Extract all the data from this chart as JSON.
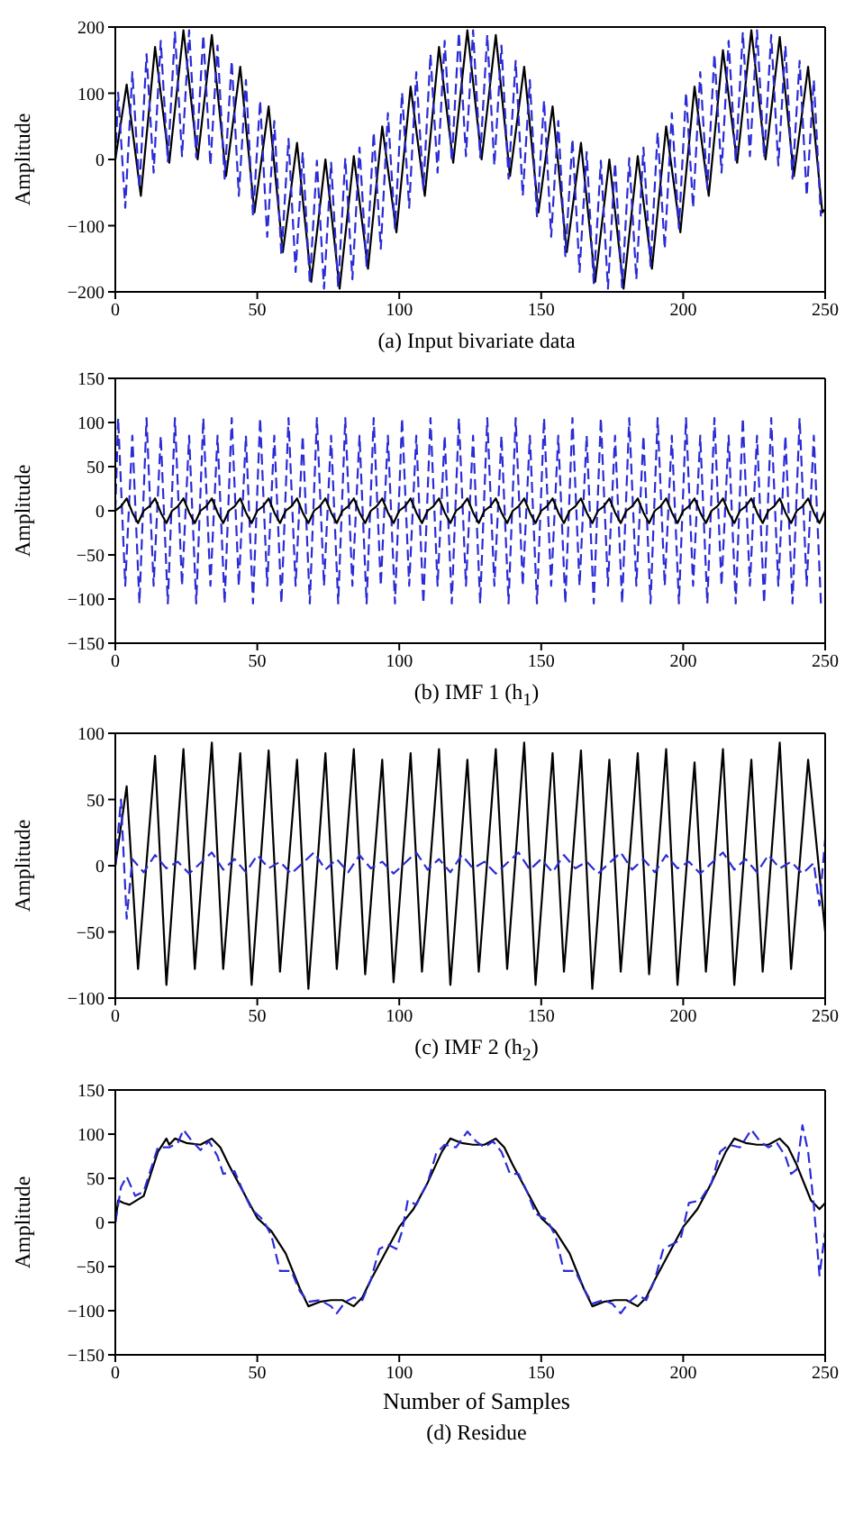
{
  "chart_data": [
    {
      "type": "line",
      "title": "(a) Input bivariate data",
      "ylabel": "Amplitude",
      "xlim": [
        0,
        250
      ],
      "xticks": [
        0,
        50,
        100,
        150,
        200,
        250
      ],
      "ylim": [
        -200,
        200
      ],
      "yticks": [
        -200,
        -100,
        0,
        100,
        200
      ],
      "series": [
        {
          "color": "#000000",
          "line_style": "solid",
          "x": [
            0,
            4,
            9,
            14,
            19,
            24,
            29,
            34,
            39,
            44,
            49,
            54,
            59,
            64,
            69,
            74,
            79,
            84,
            89,
            94,
            99,
            104,
            109,
            114,
            119,
            124,
            129,
            134,
            139,
            144,
            149,
            154,
            159,
            164,
            169,
            174,
            179,
            184,
            189,
            194,
            199,
            204,
            209,
            214,
            219,
            224,
            229,
            234,
            239,
            244,
            249,
            250
          ],
          "values": [
            0,
            113,
            -55,
            170,
            -5,
            195,
            0,
            188,
            -25,
            140,
            -80,
            80,
            -140,
            25,
            -185,
            0,
            -195,
            5,
            -165,
            50,
            -110,
            110,
            -55,
            170,
            -5,
            195,
            0,
            188,
            -25,
            140,
            -80,
            80,
            -140,
            25,
            -185,
            0,
            -195,
            5,
            -165,
            50,
            -110,
            110,
            -55,
            165,
            -5,
            195,
            0,
            185,
            -25,
            140,
            -80,
            -75
          ]
        },
        {
          "color": "#2b2bd6",
          "line_style": "dashed",
          "x": [
            0,
            1,
            3.5,
            6,
            8.5,
            11,
            13.5,
            16,
            18.5,
            21,
            23.5,
            26,
            28.5,
            31,
            33.5,
            36,
            38.5,
            41,
            43.5,
            46,
            48.5,
            51,
            53.5,
            56,
            58.5,
            61,
            63.5,
            66,
            68.5,
            71,
            73.5,
            76,
            78.5,
            81,
            83.5,
            86,
            88.5,
            91,
            93.5,
            96,
            98.5,
            101,
            103.5,
            106,
            108.5,
            111,
            113.5,
            116,
            118.5,
            121,
            123.5,
            126,
            128.5,
            131,
            133.5,
            136,
            138.5,
            141,
            143.5,
            146,
            148.5,
            151,
            153.5,
            156,
            158.5,
            161,
            163.5,
            166,
            168.5,
            171,
            173.5,
            176,
            178.5,
            181,
            183.5,
            186,
            188.5,
            191,
            193.5,
            196,
            198.5,
            201,
            203.5,
            206,
            208.5,
            211,
            213.5,
            216,
            218.5,
            221,
            223.5,
            226,
            228.5,
            231,
            233.5,
            236,
            238.5,
            241,
            243.5,
            246,
            248.5
          ],
          "values": [
            0,
            101,
            -73,
            132,
            -44,
            159,
            -20,
            179,
            -3,
            192,
            5,
            195,
            3,
            188,
            -9,
            172,
            -29,
            149,
            -55,
            120,
            -86,
            89,
            -117,
            58,
            -146,
            31,
            -170,
            11,
            -187,
            -2,
            -195,
            -5,
            -193,
            2,
            -181,
            18,
            -161,
            41,
            -135,
            70,
            -104,
            101,
            -73,
            132,
            -44,
            159,
            -20,
            179,
            -3,
            192,
            5,
            195,
            3,
            188,
            -9,
            172,
            -29,
            149,
            -55,
            120,
            -86,
            89,
            -117,
            58,
            -146,
            31,
            -170,
            11,
            -187,
            -2,
            -195,
            -5,
            -193,
            2,
            -181,
            18,
            -161,
            41,
            -135,
            70,
            -104,
            101,
            -73,
            132,
            -44,
            159,
            -20,
            179,
            -3,
            192,
            5,
            195,
            3,
            188,
            -9,
            172,
            -29,
            149,
            -55,
            120,
            -86
          ]
        }
      ]
    },
    {
      "type": "line",
      "title": "(b) IMF 1 (h$_{1}$)",
      "ylabel": "Amplitude",
      "xlim": [
        0,
        250
      ],
      "xticks": [
        0,
        50,
        100,
        150,
        200,
        250
      ],
      "ylim": [
        -150,
        150
      ],
      "yticks": [
        -150,
        -100,
        -50,
        0,
        50,
        100,
        150
      ],
      "series": [
        {
          "color": "#2b2bd6",
          "line_style": "dashed",
          "x": [
            0,
            1,
            3.5,
            6,
            8.5,
            11,
            13.5,
            16,
            18.5,
            21,
            23.5,
            26,
            28.5,
            31,
            33.5,
            36,
            38.5,
            41,
            43.5,
            46,
            48.5,
            51,
            53.5,
            56,
            58.5,
            61,
            63.5,
            66,
            68.5,
            71,
            73.5,
            76,
            78.5,
            81,
            83.5,
            86,
            88.5,
            91,
            93.5,
            96,
            98.5,
            101,
            103.5,
            106,
            108.5,
            111,
            113.5,
            116,
            118.5,
            121,
            123.5,
            126,
            128.5,
            131,
            133.5,
            136,
            138.5,
            141,
            143.5,
            146,
            148.5,
            151,
            153.5,
            156,
            158.5,
            161,
            163.5,
            166,
            168.5,
            171,
            173.5,
            176,
            178.5,
            181,
            183.5,
            186,
            188.5,
            191,
            193.5,
            196,
            198.5,
            201,
            203.5,
            206,
            208.5,
            211,
            213.5,
            216,
            218.5,
            221,
            223.5,
            226,
            228.5,
            231,
            233.5,
            236,
            238.5,
            241,
            243.5,
            246,
            248.5
          ],
          "values": [
            0,
            105,
            -85,
            85,
            -105,
            105,
            -85,
            85,
            -105,
            105,
            -85,
            85,
            -105,
            105,
            -85,
            85,
            -105,
            105,
            -85,
            85,
            -105,
            105,
            -85,
            85,
            -105,
            105,
            -85,
            85,
            -105,
            105,
            -85,
            85,
            -105,
            105,
            -85,
            85,
            -105,
            105,
            -85,
            85,
            -105,
            105,
            -85,
            85,
            -105,
            105,
            -85,
            85,
            -105,
            105,
            -85,
            85,
            -105,
            105,
            -85,
            85,
            -105,
            105,
            -85,
            85,
            -105,
            105,
            -85,
            85,
            -105,
            105,
            -85,
            85,
            -105,
            105,
            -85,
            85,
            -105,
            105,
            -85,
            85,
            -105,
            105,
            -85,
            85,
            -105,
            105,
            -85,
            85,
            -105,
            105,
            -85,
            85,
            -105,
            105,
            -85,
            85,
            -105,
            105,
            -85,
            85,
            -105,
            105,
            -85,
            85,
            -105
          ]
        },
        {
          "color": "#000000",
          "line_style": "solid",
          "x": [
            0,
            2,
            4,
            6,
            8,
            10,
            12,
            14,
            16,
            18,
            20,
            22,
            24,
            26,
            28,
            30,
            32,
            34,
            36,
            38,
            40,
            42,
            44,
            46,
            48,
            50,
            52,
            54,
            56,
            58,
            60,
            62,
            64,
            66,
            68,
            70,
            72,
            74,
            76,
            78,
            80,
            82,
            84,
            86,
            88,
            90,
            92,
            94,
            96,
            98,
            100,
            102,
            104,
            106,
            108,
            110,
            112,
            114,
            116,
            118,
            120,
            122,
            124,
            126,
            128,
            130,
            132,
            134,
            136,
            138,
            140,
            142,
            144,
            146,
            148,
            150,
            152,
            154,
            156,
            158,
            160,
            162,
            164,
            166,
            168,
            170,
            172,
            174,
            176,
            178,
            180,
            182,
            184,
            186,
            188,
            190,
            192,
            194,
            196,
            198,
            200,
            202,
            204,
            206,
            208,
            210,
            212,
            214,
            216,
            218,
            220,
            222,
            224,
            226,
            228,
            230,
            232,
            234,
            236,
            238,
            240,
            242,
            244,
            246,
            248,
            250
          ],
          "values": [
            0,
            5,
            14,
            -2,
            -14,
            0,
            5,
            14,
            -2,
            -14,
            0,
            5,
            14,
            -2,
            -14,
            0,
            5,
            14,
            -2,
            -14,
            0,
            5,
            14,
            -2,
            -14,
            0,
            5,
            14,
            -2,
            -14,
            0,
            5,
            14,
            -2,
            -14,
            0,
            5,
            14,
            -2,
            -14,
            0,
            5,
            14,
            -2,
            -14,
            0,
            5,
            14,
            -2,
            -14,
            0,
            5,
            14,
            -2,
            -14,
            0,
            5,
            14,
            -2,
            -14,
            0,
            5,
            14,
            -2,
            -14,
            0,
            5,
            14,
            -2,
            -14,
            0,
            5,
            14,
            -2,
            -14,
            0,
            5,
            14,
            -2,
            -14,
            0,
            5,
            14,
            -2,
            -14,
            0,
            5,
            14,
            -2,
            -14,
            0,
            5,
            14,
            -2,
            -14,
            0,
            5,
            14,
            -2,
            -14,
            0,
            5,
            14,
            -2,
            -14,
            0,
            5,
            14,
            -2,
            -14,
            0,
            5,
            14,
            -2,
            -14,
            0,
            5,
            14,
            -2,
            -14,
            0,
            5,
            14,
            -2,
            -14,
            0
          ]
        }
      ]
    },
    {
      "type": "line",
      "title": "(c) IMF 2 (h$_{2}$)",
      "ylabel": "Amplitude",
      "xlim": [
        0,
        250
      ],
      "xticks": [
        0,
        50,
        100,
        150,
        200,
        250
      ],
      "ylim": [
        -100,
        100
      ],
      "yticks": [
        -100,
        -50,
        0,
        50,
        100
      ],
      "series": [
        {
          "color": "#000000",
          "line_style": "solid",
          "x": [
            0,
            4,
            8,
            14,
            18,
            24,
            28,
            34,
            38,
            44,
            48,
            54,
            58,
            64,
            68,
            74,
            78,
            84,
            88,
            94,
            98,
            104,
            108,
            114,
            118,
            124,
            128,
            134,
            138,
            144,
            148,
            154,
            158,
            164,
            168,
            174,
            178,
            184,
            188,
            194,
            198,
            204,
            208,
            214,
            218,
            224,
            228,
            234,
            238,
            244,
            250
          ],
          "values": [
            0,
            60,
            -78,
            83,
            -90,
            88,
            -78,
            93,
            -78,
            85,
            -90,
            87,
            -80,
            80,
            -93,
            85,
            -78,
            88,
            -82,
            80,
            -88,
            85,
            -80,
            88,
            -90,
            80,
            -80,
            88,
            -78,
            93,
            -90,
            85,
            -80,
            87,
            -93,
            80,
            -80,
            85,
            -82,
            88,
            -90,
            78,
            -80,
            88,
            -90,
            80,
            -80,
            93,
            -78,
            80,
            -50
          ]
        },
        {
          "color": "#2b2bd6",
          "line_style": "dashed",
          "x": [
            0,
            2,
            4,
            6,
            10,
            14,
            18,
            22,
            26,
            30,
            34,
            38,
            42,
            46,
            50,
            54,
            58,
            62,
            66,
            70,
            74,
            78,
            82,
            86,
            90,
            94,
            98,
            102,
            106,
            110,
            114,
            118,
            122,
            126,
            130,
            134,
            138,
            142,
            146,
            150,
            154,
            158,
            162,
            166,
            170,
            174,
            178,
            182,
            186,
            190,
            194,
            198,
            202,
            206,
            210,
            214,
            218,
            222,
            226,
            230,
            234,
            238,
            242,
            246,
            248,
            250
          ],
          "values": [
            0,
            50,
            -40,
            5,
            -5,
            8,
            -2,
            3,
            -6,
            2,
            10,
            -3,
            5,
            -5,
            8,
            -2,
            3,
            -6,
            2,
            10,
            -3,
            5,
            -5,
            8,
            -2,
            3,
            -6,
            2,
            10,
            -3,
            5,
            -5,
            8,
            -2,
            3,
            -6,
            2,
            10,
            -3,
            5,
            -5,
            8,
            -2,
            3,
            -6,
            2,
            10,
            -3,
            5,
            -5,
            8,
            -2,
            3,
            -6,
            2,
            10,
            -3,
            5,
            -5,
            8,
            -2,
            3,
            -6,
            2,
            -30,
            20
          ]
        }
      ]
    },
    {
      "type": "line",
      "title": "(d) Residue",
      "xlabel": "Number of Samples",
      "ylabel": "Amplitude",
      "xlim": [
        0,
        250
      ],
      "xticks": [
        0,
        50,
        100,
        150,
        200,
        250
      ],
      "ylim": [
        -150,
        150
      ],
      "yticks": [
        -150,
        -100,
        -50,
        0,
        50,
        100,
        150
      ],
      "series": [
        {
          "color": "#000000",
          "line_style": "solid",
          "x": [
            0,
            1,
            3,
            5,
            10,
            15,
            18,
            19,
            21,
            25,
            30,
            34,
            37,
            40,
            45,
            50,
            55,
            60,
            65,
            68,
            72,
            76,
            80,
            84,
            87,
            90,
            95,
            100,
            105,
            110,
            115,
            118,
            122,
            126,
            130,
            134,
            137,
            140,
            145,
            150,
            155,
            160,
            165,
            168,
            172,
            176,
            180,
            184,
            187,
            190,
            195,
            200,
            205,
            210,
            215,
            218,
            222,
            226,
            230,
            234,
            237,
            240,
            245,
            248,
            250
          ],
          "values": [
            0,
            25,
            22,
            20,
            30,
            80,
            95,
            88,
            95,
            90,
            88,
            95,
            85,
            65,
            35,
            5,
            -10,
            -35,
            -75,
            -95,
            -90,
            -88,
            -88,
            -95,
            -85,
            -65,
            -35,
            -5,
            15,
            45,
            80,
            95,
            90,
            88,
            88,
            95,
            85,
            65,
            35,
            5,
            -10,
            -35,
            -75,
            -95,
            -90,
            -88,
            -88,
            -95,
            -85,
            -65,
            -35,
            -5,
            15,
            45,
            80,
            95,
            90,
            88,
            88,
            95,
            85,
            65,
            25,
            15,
            22
          ]
        },
        {
          "color": "#2b2bd6",
          "line_style": "dashed",
          "x": [
            0,
            2,
            4,
            7,
            10,
            15,
            19,
            22,
            24,
            27,
            30,
            33,
            36,
            38,
            42,
            45,
            48,
            52,
            55,
            58,
            62,
            65,
            68,
            72,
            76,
            78,
            81,
            84,
            87,
            90,
            93,
            96,
            99,
            101,
            103,
            106,
            110,
            113,
            116,
            120,
            124,
            127,
            130,
            133,
            136,
            139,
            142,
            145,
            148,
            152,
            155,
            158,
            162,
            165,
            168,
            172,
            175,
            178,
            181,
            184,
            187,
            190,
            193,
            196,
            199,
            202,
            206,
            210,
            213,
            216,
            220,
            224,
            227,
            230,
            233,
            236,
            238,
            240,
            242,
            244,
            246,
            248,
            250
          ],
          "values": [
            0,
            40,
            52,
            30,
            35,
            85,
            85,
            90,
            105,
            92,
            82,
            92,
            75,
            55,
            58,
            35,
            15,
            3,
            -15,
            -55,
            -55,
            -78,
            -90,
            -88,
            -95,
            -103,
            -90,
            -85,
            -88,
            -65,
            -30,
            -25,
            -30,
            -10,
            25,
            20,
            45,
            78,
            88,
            85,
            103,
            92,
            85,
            92,
            80,
            55,
            55,
            35,
            10,
            3,
            -15,
            -55,
            -55,
            -75,
            -92,
            -88,
            -92,
            -103,
            -90,
            -82,
            -88,
            -65,
            -30,
            -25,
            -20,
            22,
            25,
            45,
            80,
            88,
            85,
            105,
            92,
            85,
            90,
            75,
            55,
            60,
            110,
            80,
            20,
            -60,
            -10
          ]
        }
      ]
    }
  ]
}
